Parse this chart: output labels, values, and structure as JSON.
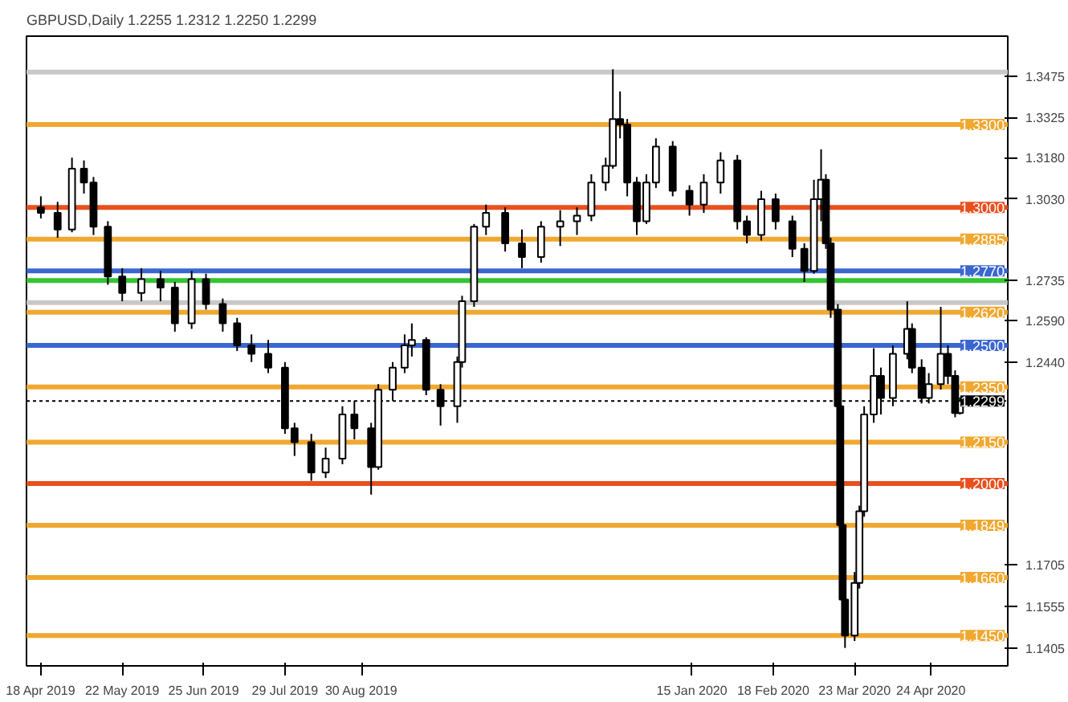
{
  "chart_data": {
    "type": "candlestick",
    "title": "GBPUSD,Daily  1.2255 1.2312 1.2250 1.2299",
    "x": [
      "2019-04-18",
      "2019-04-25",
      "2019-05-01",
      "2019-05-06",
      "2019-05-10",
      "2019-05-16",
      "2019-05-22",
      "2019-05-30",
      "2019-06-07",
      "2019-06-13",
      "2019-06-20",
      "2019-06-26",
      "2019-07-03",
      "2019-07-09",
      "2019-07-15",
      "2019-07-22",
      "2019-07-29",
      "2019-08-02",
      "2019-08-09",
      "2019-08-15",
      "2019-08-22",
      "2019-08-27",
      "2019-09-03",
      "2019-09-06",
      "2019-09-12",
      "2019-09-17",
      "2019-09-20",
      "2019-09-26",
      "2019-10-02",
      "2019-10-09",
      "2019-10-11",
      "2019-10-16",
      "2019-10-21",
      "2019-10-29",
      "2019-11-05",
      "2019-11-13",
      "2019-11-21",
      "2019-11-28",
      "2019-12-04",
      "2019-12-10",
      "2019-12-13",
      "2019-12-16",
      "2019-12-19",
      "2019-12-23",
      "2019-12-27",
      "2019-12-31",
      "2020-01-07",
      "2020-01-14",
      "2020-01-20",
      "2020-01-27",
      "2020-02-03",
      "2020-02-07",
      "2020-02-13",
      "2020-02-19",
      "2020-02-26",
      "2020-03-02",
      "2020-03-06",
      "2020-03-09",
      "2020-03-11",
      "2020-03-13",
      "2020-03-16",
      "2020-03-17",
      "2020-03-18",
      "2020-03-19",
      "2020-03-23",
      "2020-03-25",
      "2020-03-27",
      "2020-03-31",
      "2020-04-03",
      "2020-04-08",
      "2020-04-14",
      "2020-04-16",
      "2020-04-20",
      "2020-04-23",
      "2020-04-28",
      "2020-05-01",
      "2020-05-04",
      "2020-05-06"
    ],
    "ohlc": [
      [
        1.3,
        1.304,
        1.296,
        1.298
      ],
      [
        1.298,
        1.302,
        1.289,
        1.292
      ],
      [
        1.292,
        1.318,
        1.291,
        1.314
      ],
      [
        1.314,
        1.317,
        1.305,
        1.309
      ],
      [
        1.309,
        1.311,
        1.29,
        1.293
      ],
      [
        1.293,
        1.295,
        1.272,
        1.275
      ],
      [
        1.275,
        1.278,
        1.266,
        1.269
      ],
      [
        1.269,
        1.278,
        1.266,
        1.274
      ],
      [
        1.274,
        1.277,
        1.266,
        1.271
      ],
      [
        1.271,
        1.273,
        1.255,
        1.258
      ],
      [
        1.258,
        1.277,
        1.256,
        1.274
      ],
      [
        1.274,
        1.276,
        1.263,
        1.265
      ],
      [
        1.265,
        1.267,
        1.255,
        1.258
      ],
      [
        1.258,
        1.26,
        1.248,
        1.25
      ],
      [
        1.25,
        1.254,
        1.244,
        1.247
      ],
      [
        1.247,
        1.252,
        1.24,
        1.242
      ],
      [
        1.242,
        1.244,
        1.218,
        1.22
      ],
      [
        1.22,
        1.222,
        1.21,
        1.215
      ],
      [
        1.215,
        1.218,
        1.201,
        1.204
      ],
      [
        1.204,
        1.213,
        1.202,
        1.209
      ],
      [
        1.209,
        1.228,
        1.207,
        1.225
      ],
      [
        1.225,
        1.23,
        1.216,
        1.22
      ],
      [
        1.22,
        1.222,
        1.196,
        1.206
      ],
      [
        1.206,
        1.236,
        1.205,
        1.234
      ],
      [
        1.234,
        1.244,
        1.23,
        1.242
      ],
      [
        1.242,
        1.254,
        1.24,
        1.25
      ],
      [
        1.25,
        1.258,
        1.246,
        1.252
      ],
      [
        1.252,
        1.253,
        1.232,
        1.234
      ],
      [
        1.234,
        1.236,
        1.221,
        1.228
      ],
      [
        1.228,
        1.246,
        1.222,
        1.244
      ],
      [
        1.244,
        1.268,
        1.242,
        1.266
      ],
      [
        1.266,
        1.294,
        1.264,
        1.293
      ],
      [
        1.293,
        1.301,
        1.29,
        1.298
      ],
      [
        1.298,
        1.3,
        1.284,
        1.287
      ],
      [
        1.287,
        1.292,
        1.278,
        1.282
      ],
      [
        1.282,
        1.295,
        1.28,
        1.293
      ],
      [
        1.293,
        1.299,
        1.286,
        1.295
      ],
      [
        1.295,
        1.3,
        1.29,
        1.297
      ],
      [
        1.297,
        1.312,
        1.295,
        1.309
      ],
      [
        1.309,
        1.318,
        1.306,
        1.315
      ],
      [
        1.315,
        1.35,
        1.314,
        1.332
      ],
      [
        1.332,
        1.342,
        1.325,
        1.33
      ],
      [
        1.33,
        1.332,
        1.304,
        1.309
      ],
      [
        1.309,
        1.311,
        1.29,
        1.295
      ],
      [
        1.295,
        1.312,
        1.294,
        1.309
      ],
      [
        1.309,
        1.325,
        1.307,
        1.322
      ],
      [
        1.322,
        1.324,
        1.304,
        1.306
      ],
      [
        1.306,
        1.308,
        1.297,
        1.301
      ],
      [
        1.301,
        1.312,
        1.298,
        1.309
      ],
      [
        1.309,
        1.32,
        1.305,
        1.317
      ],
      [
        1.317,
        1.319,
        1.292,
        1.295
      ],
      [
        1.295,
        1.297,
        1.287,
        1.29
      ],
      [
        1.29,
        1.306,
        1.288,
        1.303
      ],
      [
        1.303,
        1.305,
        1.292,
        1.295
      ],
      [
        1.295,
        1.297,
        1.282,
        1.285
      ],
      [
        1.285,
        1.287,
        1.273,
        1.277
      ],
      [
        1.277,
        1.31,
        1.276,
        1.303
      ],
      [
        1.303,
        1.321,
        1.295,
        1.31
      ],
      [
        1.31,
        1.312,
        1.285,
        1.287
      ],
      [
        1.287,
        1.289,
        1.26,
        1.263
      ],
      [
        1.263,
        1.265,
        1.226,
        1.228
      ],
      [
        1.228,
        1.23,
        1.183,
        1.185
      ],
      [
        1.185,
        1.188,
        1.155,
        1.158
      ],
      [
        1.158,
        1.175,
        1.1405,
        1.145
      ],
      [
        1.145,
        1.168,
        1.143,
        1.164
      ],
      [
        1.164,
        1.192,
        1.162,
        1.19
      ],
      [
        1.19,
        1.228,
        1.188,
        1.225
      ],
      [
        1.225,
        1.249,
        1.222,
        1.239
      ],
      [
        1.239,
        1.242,
        1.225,
        1.231
      ],
      [
        1.231,
        1.25,
        1.228,
        1.247
      ],
      [
        1.247,
        1.266,
        1.245,
        1.256
      ],
      [
        1.256,
        1.258,
        1.24,
        1.242
      ],
      [
        1.242,
        1.245,
        1.229,
        1.231
      ],
      [
        1.231,
        1.24,
        1.229,
        1.236
      ],
      [
        1.236,
        1.264,
        1.234,
        1.247
      ],
      [
        1.247,
        1.25,
        1.236,
        1.239
      ],
      [
        1.239,
        1.241,
        1.224,
        1.2255
      ],
      [
        1.2255,
        1.2312,
        1.225,
        1.2299
      ]
    ],
    "xlim": [
      "2019-04-12",
      "2020-05-26"
    ],
    "xticks": [
      {
        "value": "2019-04-18",
        "label": "18 Apr 2019"
      },
      {
        "value": "2019-05-22",
        "label": "22 May 2019"
      },
      {
        "value": "2019-06-25",
        "label": "25 Jun 2019"
      },
      {
        "value": "2019-07-29",
        "label": "29 Jul 2019"
      },
      {
        "value": "2019-08-30",
        "label": "30 Aug 2019"
      },
      {
        "value": "2020-01-15",
        "label": "15 Jan 2020"
      },
      {
        "value": "2020-02-18",
        "label": "18 Feb 2020"
      },
      {
        "value": "2020-03-23",
        "label": "23 Mar 2020"
      },
      {
        "value": "2020-04-24",
        "label": "24 Apr 2020"
      }
    ],
    "ylim": [
      1.134,
      1.362
    ],
    "yticks": [
      {
        "value": 1.3475,
        "label": "1.3475"
      },
      {
        "value": 1.3325,
        "label": "1.3325"
      },
      {
        "value": 1.318,
        "label": "1.3180"
      },
      {
        "value": 1.303,
        "label": "1.3030"
      },
      {
        "value": 1.2735,
        "label": "1.2735"
      },
      {
        "value": 1.259,
        "label": "1.2590"
      },
      {
        "value": 1.244,
        "label": "1.2440"
      },
      {
        "value": 1.1705,
        "label": "1.1705"
      },
      {
        "value": 1.1555,
        "label": "1.1555"
      },
      {
        "value": 1.1405,
        "label": "1.1405"
      }
    ],
    "ref_lines": [
      {
        "axis": "y",
        "value": 1.349,
        "label": null,
        "color": "#c8c8c8"
      },
      {
        "axis": "y",
        "value": 1.33,
        "label": "1.3300",
        "color": "#f0a830"
      },
      {
        "axis": "y",
        "value": 1.3,
        "label": "1.3000",
        "color": "#e8501e"
      },
      {
        "axis": "y",
        "value": 1.2885,
        "label": "1.2885",
        "color": "#f0a830"
      },
      {
        "axis": "y",
        "value": 1.277,
        "label": "1.2770",
        "color": "#3a66d0"
      },
      {
        "axis": "y",
        "value": 1.2735,
        "label": null,
        "color": "#33c433"
      },
      {
        "axis": "y",
        "value": 1.2655,
        "label": null,
        "color": "#c8c8c8"
      },
      {
        "axis": "y",
        "value": 1.262,
        "label": "1.2620",
        "color": "#f0a830"
      },
      {
        "axis": "y",
        "value": 1.25,
        "label": "1.2500",
        "color": "#3a66d0"
      },
      {
        "axis": "y",
        "value": 1.235,
        "label": "1.2350",
        "color": "#f0a830"
      },
      {
        "axis": "y",
        "value": 1.2299,
        "label": "1.2299",
        "color": "#000000",
        "line_style": "dotted"
      },
      {
        "axis": "y",
        "value": 1.215,
        "label": "1.2150",
        "color": "#f0a830"
      },
      {
        "axis": "y",
        "value": 1.2,
        "label": "1.2000",
        "color": "#e8501e"
      },
      {
        "axis": "y",
        "value": 1.1849,
        "label": "1.1849",
        "color": "#f0a830"
      },
      {
        "axis": "y",
        "value": 1.166,
        "label": "1.1660",
        "color": "#f0a830"
      },
      {
        "axis": "y",
        "value": 1.145,
        "label": "1.1450",
        "color": "#f0a830"
      }
    ],
    "grid": false
  }
}
